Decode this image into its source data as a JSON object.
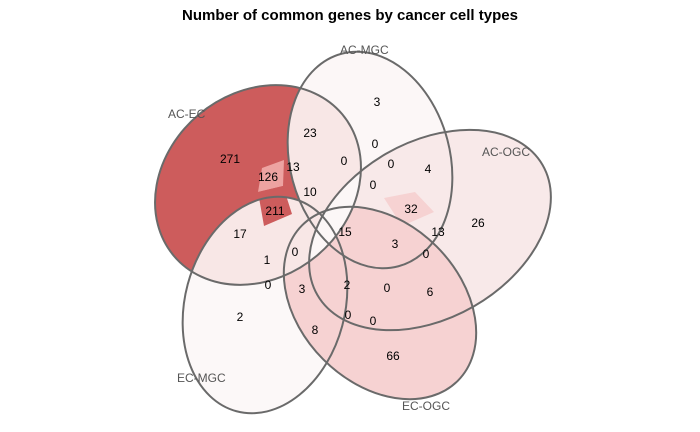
{
  "title": "Number of common genes by cancer cell types",
  "sets": [
    "AC-EC",
    "AC-MGC",
    "AC-OGC",
    "EC-OGC",
    "EC-MGC"
  ],
  "colors": {
    "high": "#cd5c5c",
    "mid": "#f3c7c5",
    "low": "#f8e7e6",
    "lowest": "#fcf7f7",
    "outline": "#6a6a6a",
    "label": "#555555"
  },
  "counts": {
    "ac_ec_only": "271",
    "ac_mgc_only": "3",
    "ac_ogc_only": "26",
    "ec_ogc_only": "66",
    "ec_mgc_only": "2",
    "r23": "23",
    "r0a": "0",
    "r0b": "0",
    "r4": "4",
    "r13a": "13",
    "r0c": "0",
    "r126": "126",
    "r10": "10",
    "r0d": "0",
    "r32": "32",
    "r211": "211",
    "r15": "15",
    "r13b": "13",
    "r17": "17",
    "r0e": "0",
    "r3a": "3",
    "r0f": "0",
    "r1": "1",
    "r0g": "0",
    "r3b": "3",
    "r2": "2",
    "r0h": "0",
    "r6": "6",
    "r8": "8",
    "r0i": "0",
    "r0j": "0"
  }
}
